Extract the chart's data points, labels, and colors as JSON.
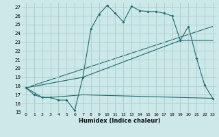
{
  "title": "",
  "xlabel": "Humidex (Indice chaleur)",
  "xlim": [
    -0.5,
    23.5
  ],
  "ylim": [
    15,
    27.5
  ],
  "xticks": [
    0,
    1,
    2,
    3,
    4,
    5,
    6,
    7,
    8,
    9,
    10,
    11,
    12,
    13,
    14,
    15,
    16,
    17,
    18,
    19,
    20,
    21,
    22,
    23
  ],
  "yticks": [
    15,
    16,
    17,
    18,
    19,
    20,
    21,
    22,
    23,
    24,
    25,
    26,
    27
  ],
  "bg_color": "#cce8e8",
  "grid_color": "#aacccc",
  "line_color": "#1a6b6b",
  "line1_x": [
    0,
    1,
    2,
    3,
    4,
    5,
    6,
    7,
    8,
    9,
    10,
    11,
    12,
    13,
    14,
    15,
    16,
    17,
    18,
    19,
    20,
    21,
    22,
    23
  ],
  "line1_y": [
    17.8,
    17.0,
    16.7,
    16.7,
    16.4,
    16.4,
    15.2,
    19.0,
    24.5,
    26.2,
    27.2,
    26.3,
    25.3,
    27.1,
    26.6,
    26.5,
    26.5,
    26.3,
    26.0,
    23.2,
    24.8,
    21.2,
    18.1,
    16.6
  ],
  "line2_x": [
    0,
    2,
    3,
    7,
    19,
    23
  ],
  "line2_y": [
    17.8,
    16.7,
    16.7,
    17.0,
    16.7,
    16.6
  ],
  "line3_x": [
    0,
    7,
    19,
    23
  ],
  "line3_y": [
    17.8,
    19.0,
    23.2,
    23.2
  ],
  "line4_x": [
    0,
    23
  ],
  "line4_y": [
    17.8,
    24.8
  ]
}
